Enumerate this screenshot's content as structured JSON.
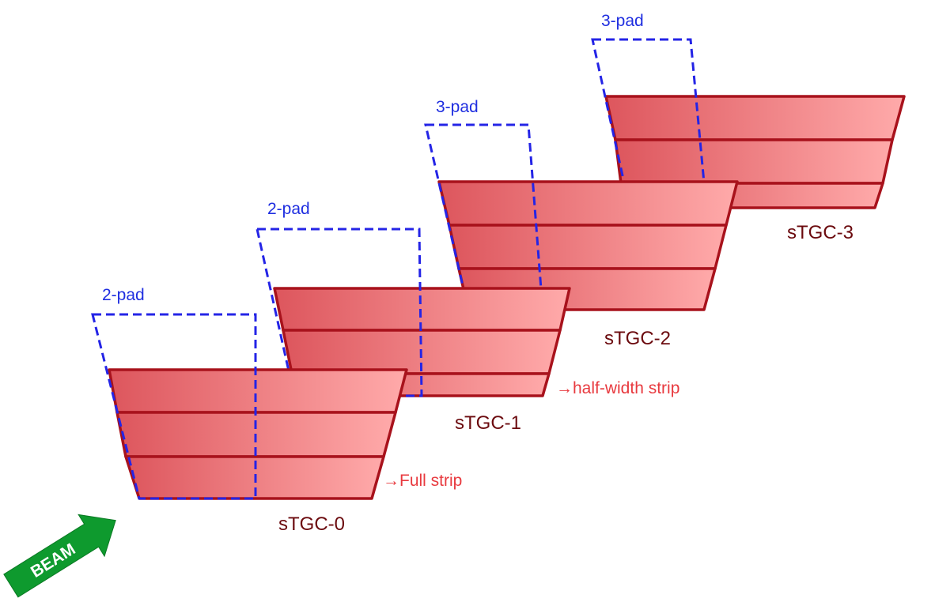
{
  "colors": {
    "strip_stroke": "#a8121c",
    "strip_fill_left": "#dd565d",
    "strip_fill_right": "#ffaaaa",
    "pad_outline": "#2424e6",
    "chamber_label": "#6b0a0e",
    "pad_label": "#1f2ee0",
    "annotation": "#e83a3f",
    "beam_fill": "#0e9a2e",
    "beam_text": "#ffffff"
  },
  "chambers": [
    {
      "id": "stgc-0",
      "label": "sTGC-0",
      "pad_label": "2-pad"
    },
    {
      "id": "stgc-1",
      "label": "sTGC-1",
      "pad_label": "2-pad"
    },
    {
      "id": "stgc-2",
      "label": "sTGC-2",
      "pad_label": "3-pad"
    },
    {
      "id": "stgc-3",
      "label": "sTGC-3",
      "pad_label": "3-pad"
    }
  ],
  "annotations": {
    "full_strip": "→Full strip",
    "half_width_strip": "→half-width strip"
  },
  "beam": {
    "label": "BEAM"
  }
}
